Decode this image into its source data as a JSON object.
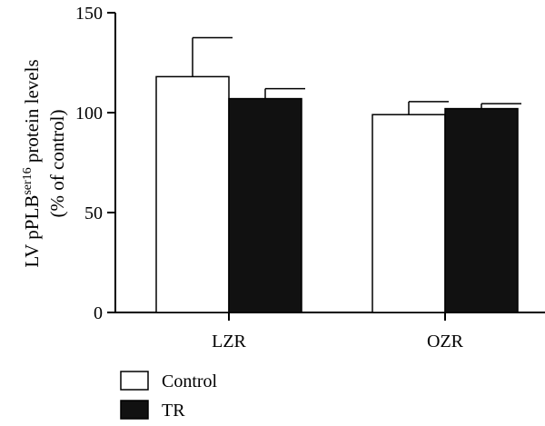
{
  "chart_data": {
    "type": "bar",
    "categories": [
      "LZR",
      "OZR"
    ],
    "series": [
      {
        "name": "Control",
        "values": [
          118,
          99
        ],
        "errors": [
          19.5,
          6.5
        ],
        "fill": "#ffffff"
      },
      {
        "name": "TR",
        "values": [
          107,
          102
        ],
        "errors": [
          5,
          2.5
        ],
        "fill": "#111111"
      }
    ],
    "ylim": [
      0,
      150
    ],
    "yticks": [
      "0",
      "50",
      "100",
      "150"
    ],
    "ylabel": {
      "line1_prefix": "LV pPLB",
      "line1_superscript": "ser16",
      "line1_suffix": " protein levels",
      "line2": "(% of control)"
    },
    "legend_position": "bottom-left",
    "grid": false
  }
}
